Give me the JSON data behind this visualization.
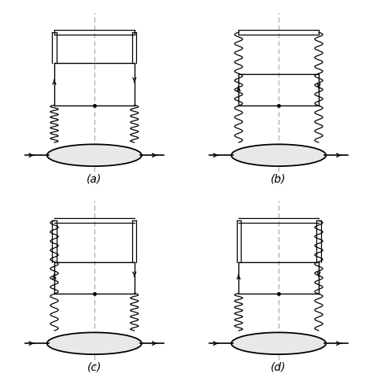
{
  "fig_width": 4.74,
  "fig_height": 4.85,
  "dpi": 100,
  "bg_color": "#ffffff",
  "line_color": "#000000",
  "labels": [
    "(a)",
    "(b)",
    "(c)",
    "(d)"
  ],
  "label_fontsize": 10
}
